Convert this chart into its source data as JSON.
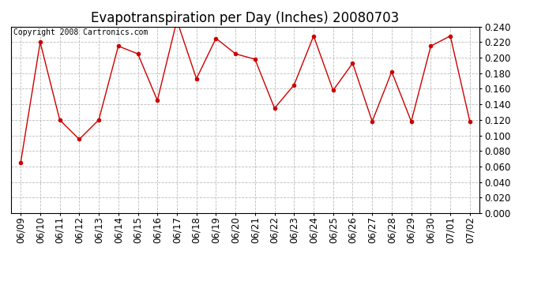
{
  "title": "Evapotranspiration per Day (Inches) 20080703",
  "copyright_text": "Copyright 2008 Cartronics.com",
  "dates": [
    "06/09",
    "06/10",
    "06/11",
    "06/12",
    "06/13",
    "06/14",
    "06/15",
    "06/16",
    "06/17",
    "06/18",
    "06/19",
    "06/20",
    "06/21",
    "06/22",
    "06/23",
    "06/24",
    "06/25",
    "06/26",
    "06/27",
    "06/28",
    "06/29",
    "06/30",
    "07/01",
    "07/02"
  ],
  "values": [
    0.065,
    0.22,
    0.12,
    0.095,
    0.12,
    0.215,
    0.205,
    0.145,
    0.248,
    0.173,
    0.225,
    0.205,
    0.198,
    0.135,
    0.165,
    0.228,
    0.158,
    0.193,
    0.118,
    0.182,
    0.118,
    0.215,
    0.228,
    0.118
  ],
  "line_color": "#cc0000",
  "marker": "o",
  "marker_color": "#cc0000",
  "bg_color": "#ffffff",
  "plot_bg_color": "#ffffff",
  "grid_color": "#bbbbbb",
  "ylim": [
    0.0,
    0.24
  ],
  "ytick_step": 0.02,
  "title_fontsize": 12,
  "copyright_fontsize": 7,
  "tick_fontsize": 8.5
}
